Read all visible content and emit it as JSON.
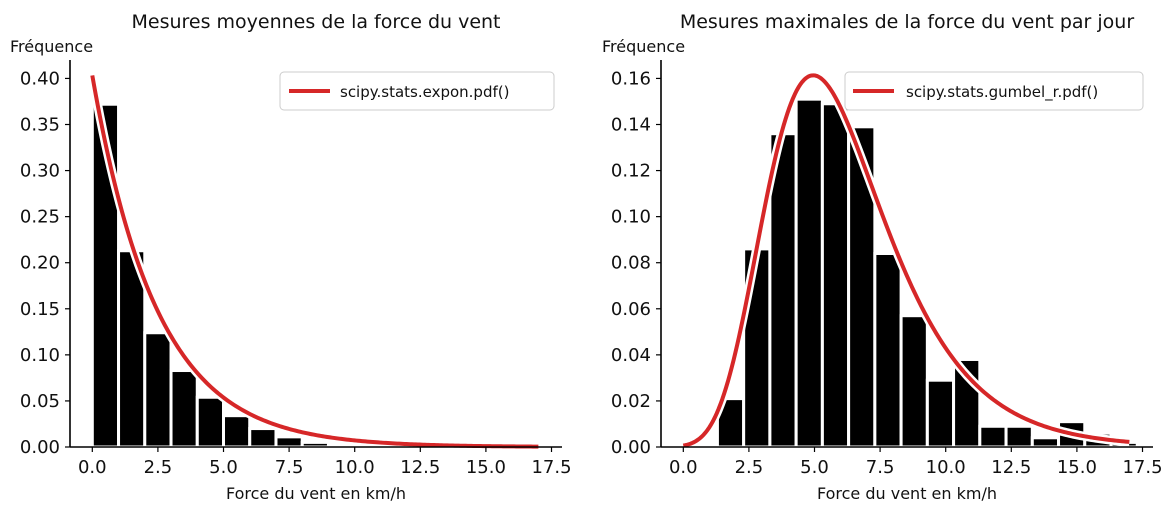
{
  "chart_data": [
    {
      "type": "bar",
      "title": "Mesures moyennes de la force du vent",
      "ylabel": "Fréquence",
      "xlabel": "Force du vent en km/h",
      "xlim": [
        -0.85,
        17.9
      ],
      "ylim": [
        0,
        0.42
      ],
      "xticks": [
        "0.0",
        "2.5",
        "5.0",
        "7.5",
        "10.0",
        "12.5",
        "15.0",
        "17.5"
      ],
      "xtick_values": [
        0,
        2.5,
        5,
        7.5,
        10,
        12.5,
        15,
        17.5
      ],
      "yticks": [
        "0.00",
        "0.05",
        "0.10",
        "0.15",
        "0.20",
        "0.25",
        "0.30",
        "0.35",
        "0.40"
      ],
      "ytick_values": [
        0,
        0.05,
        0.1,
        0.15,
        0.2,
        0.25,
        0.3,
        0.35,
        0.4
      ],
      "bar_edges": [
        0,
        1,
        2,
        3,
        4,
        5,
        6,
        7,
        8,
        9,
        10,
        11,
        12,
        13,
        14,
        15,
        16,
        17
      ],
      "values": [
        0.372,
        0.213,
        0.124,
        0.083,
        0.054,
        0.034,
        0.02,
        0.011,
        0.005,
        0.003,
        0.001,
        0.001,
        0.0005,
        0.0003,
        0.0002,
        0.0001,
        0.0001
      ],
      "bar_color": "#000000",
      "curve": {
        "name": "scipy.stats.expon.pdf()",
        "color": "#d62728",
        "kind": "expon",
        "scale": 2.48,
        "x_range": [
          0,
          17
        ]
      },
      "legend_position": "top-right",
      "grid": false
    },
    {
      "type": "bar",
      "title": "Mesures maximales de la force du vent par jour",
      "ylabel": "Fréquence",
      "xlabel": "Force du vent en km/h",
      "xlim": [
        -0.85,
        17.9
      ],
      "ylim": [
        0,
        0.168
      ],
      "xticks": [
        "0.0",
        "2.5",
        "5.0",
        "7.5",
        "10.0",
        "12.5",
        "15.0",
        "17.5"
      ],
      "xtick_values": [
        0,
        2.5,
        5,
        7.5,
        10,
        12.5,
        15,
        17.5
      ],
      "yticks": [
        "0.00",
        "0.02",
        "0.04",
        "0.06",
        "0.08",
        "0.10",
        "0.12",
        "0.14",
        "0.16"
      ],
      "ytick_values": [
        0,
        0.02,
        0.04,
        0.06,
        0.08,
        0.1,
        0.12,
        0.14,
        0.16
      ],
      "bar_edges": [
        0.3,
        1.3,
        2.3,
        3.3,
        4.3,
        5.3,
        6.3,
        7.3,
        8.3,
        9.3,
        10.3,
        11.3,
        12.3,
        13.3,
        14.3,
        15.3,
        16.3,
        17.3
      ],
      "values": [
        0.001,
        0.021,
        0.086,
        0.136,
        0.151,
        0.149,
        0.139,
        0.084,
        0.057,
        0.029,
        0.038,
        0.009,
        0.009,
        0.004,
        0.011,
        0.006,
        0.002
      ],
      "bar_color": "#000000",
      "curve": {
        "name": "scipy.stats.gumbel_r.pdf()",
        "color": "#d62728",
        "kind": "gumbel_r",
        "loc": 4.95,
        "scale": 2.28,
        "x_range": [
          0,
          17
        ]
      },
      "legend_position": "top-right",
      "grid": false
    }
  ]
}
